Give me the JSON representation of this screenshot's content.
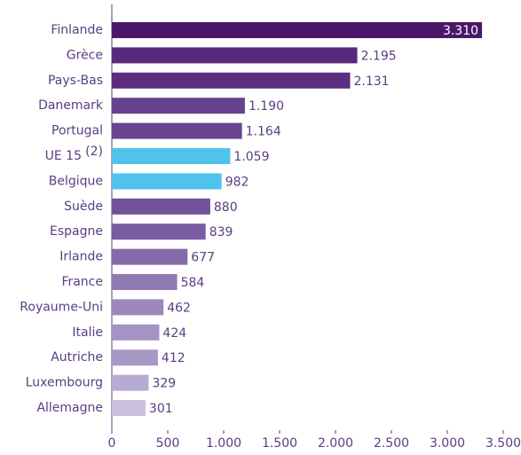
{
  "chart_data": {
    "type": "barh",
    "categories": [
      "Finlande",
      "Grèce",
      "Pays-Bas",
      "Danemark",
      "Portugal",
      "UE 15",
      "Belgique",
      "Suède",
      "Espagne",
      "Irlande",
      "France",
      "Royaume-Uni",
      "Italie",
      "Autriche",
      "Luxembourg",
      "Allemagne"
    ],
    "footnotes": [
      null,
      null,
      null,
      null,
      null,
      "(2)",
      null,
      null,
      null,
      null,
      null,
      null,
      null,
      null,
      null,
      null
    ],
    "values": [
      3310,
      2195,
      2131,
      1190,
      1164,
      1059,
      982,
      880,
      839,
      677,
      584,
      462,
      424,
      412,
      329,
      301
    ],
    "value_labels": [
      "3.310",
      "2.195",
      "2.131",
      "1.190",
      "1.164",
      "1.059",
      "982",
      "880",
      "839",
      "677",
      "584",
      "462",
      "424",
      "412",
      "329",
      "301"
    ],
    "colors": [
      "#4b1869",
      "#582a7d",
      "#5b2c80",
      "#674290",
      "#694491",
      "#4fc3ec",
      "#4fc3ec",
      "#72519b",
      "#7a5ca2",
      "#8669aa",
      "#9179b3",
      "#9c88bc",
      "#a493c3",
      "#a898c5",
      "#b8abd2",
      "#cbc1de"
    ],
    "xlim": [
      0,
      3500
    ],
    "xticks": [
      0,
      500,
      {
        "value": 1000,
        "label": "1.000"
      },
      {
        "value": 1500,
        "label": "1.500"
      },
      {
        "value": 2000,
        "label": "2.000"
      },
      {
        "value": 2500,
        "label": "2.500"
      },
      {
        "value": 3000,
        "label": "3.000"
      },
      {
        "value": 3500,
        "label": "3.500"
      }
    ]
  }
}
